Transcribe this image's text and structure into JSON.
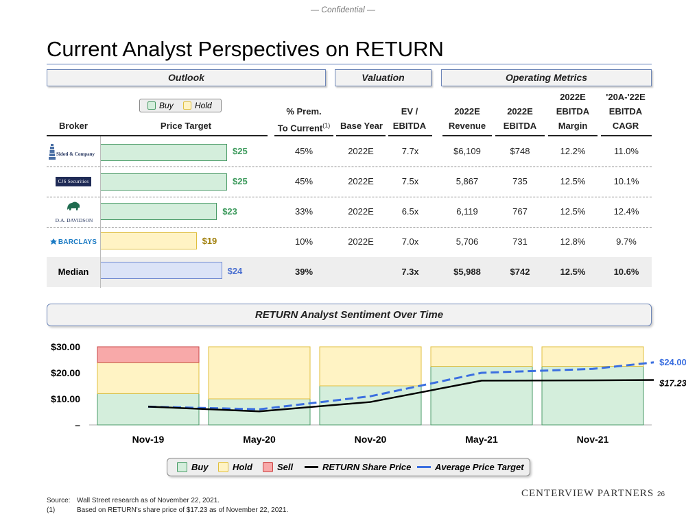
{
  "header": {
    "confidential": "— Confidential —",
    "title": "Current Analyst Perspectives on RETURN"
  },
  "sections": {
    "outlook": "Outlook",
    "valuation": "Valuation",
    "operating": "Operating Metrics"
  },
  "legend_top": {
    "buy": "Buy",
    "hold": "Hold"
  },
  "columns": {
    "broker": "Broker",
    "price_target": "Price Target",
    "prem_line1": "% Prem.",
    "prem_line2": "To Current",
    "prem_note": "(1)",
    "base_year": "Base Year",
    "ev_line1": "EV /",
    "ev_line2": "EBITDA",
    "rev_line1": "2022E",
    "rev_line2": "Revenue",
    "ebitda_line1": "2022E",
    "ebitda_line2": "EBITDA",
    "margin_line1": "2022E",
    "margin_line2": "EBITDA",
    "margin_line3": "Margin",
    "cagr_line1": "'20A-'22E",
    "cagr_line2": "EBITDA",
    "cagr_line3": "CAGR"
  },
  "brokers": [
    {
      "logo_text": "Sidoti & Company",
      "logo_icon": "lighthouse-icon",
      "rating": "Buy",
      "price_target": 25,
      "price_label": "$25",
      "prem": "45%",
      "base_year": "2022E",
      "ev_ebitda": "7.7x",
      "revenue": "$6,109",
      "ebitda": "$748",
      "margin": "12.2%",
      "cagr": "11.0%"
    },
    {
      "logo_text": "CJS Securities",
      "logo_icon": "",
      "rating": "Buy",
      "price_target": 25,
      "price_label": "$25",
      "prem": "45%",
      "base_year": "2022E",
      "ev_ebitda": "7.5x",
      "revenue": "5,867",
      "ebitda": "735",
      "margin": "12.5%",
      "cagr": "10.1%"
    },
    {
      "logo_text": "D.A. DAVIDSON",
      "logo_icon": "bison-icon",
      "rating": "Buy",
      "price_target": 23,
      "price_label": "$23",
      "prem": "33%",
      "base_year": "2022E",
      "ev_ebitda": "6.5x",
      "revenue": "6,119",
      "ebitda": "767",
      "margin": "12.5%",
      "cagr": "12.4%"
    },
    {
      "logo_text": "BARCLAYS",
      "logo_icon": "eagle-icon",
      "rating": "Hold",
      "price_target": 19,
      "price_label": "$19",
      "prem": "10%",
      "base_year": "2022E",
      "ev_ebitda": "7.0x",
      "revenue": "5,706",
      "ebitda": "731",
      "margin": "12.8%",
      "cagr": "9.7%"
    }
  ],
  "median": {
    "label": "Median",
    "price_target": 24,
    "price_label": "$24",
    "prem": "39%",
    "base_year": "",
    "ev_ebitda": "7.3x",
    "revenue": "$5,988",
    "ebitda": "$742",
    "margin": "12.5%",
    "cagr": "10.6%"
  },
  "sentiment_title": "RETURN Analyst Sentiment Over Time",
  "chart_data": {
    "type": "bar",
    "stacked": true,
    "categories": [
      "Nov-19",
      "May-20",
      "Nov-20",
      "May-21",
      "Nov-21"
    ],
    "series": [
      {
        "name": "Buy",
        "values": [
          12,
          10,
          15,
          22.5,
          22.5
        ]
      },
      {
        "name": "Hold",
        "values": [
          12,
          20,
          15,
          7.5,
          7.5
        ]
      },
      {
        "name": "Sell",
        "values": [
          6,
          0,
          0,
          0,
          0
        ]
      }
    ],
    "lines": [
      {
        "name": "RETURN Share Price",
        "x": [
          0,
          1,
          2,
          3,
          4,
          4.55
        ],
        "values": [
          7,
          5.2,
          8.8,
          17,
          17.1,
          17.23
        ]
      },
      {
        "name": "Average Price Target",
        "x": [
          0,
          1,
          2,
          3,
          4,
          4.55
        ],
        "values": [
          7,
          6,
          11,
          20,
          21.5,
          24
        ]
      }
    ],
    "yticks": [
      "$30.00",
      "$20.00",
      "$10.00",
      "–"
    ],
    "ytick_values": [
      30,
      20,
      10,
      0
    ],
    "ylim": [
      0,
      30
    ],
    "end_labels": {
      "price_target": "$24.00",
      "share_price": "$17.23"
    },
    "colors": {
      "buy": "#d4eedc",
      "hold": "#fff3c4",
      "sell": "#f8a9a9",
      "price": "#000000",
      "target": "#3b6fe0"
    },
    "legend_placement": "bottom"
  },
  "chart_legend": {
    "buy": "Buy",
    "hold": "Hold",
    "sell": "Sell",
    "price": "RETURN Share Price",
    "target": "Average Price Target"
  },
  "footnotes": [
    {
      "key": "Source:",
      "text": "Wall Street research as of November 22, 2021."
    },
    {
      "key": "(1)",
      "text": "Based on RETURN's share price of $17.23 as of November 22, 2021."
    }
  ],
  "footer": {
    "logo": "CENTERVIEW PARTNERS",
    "page": "26"
  }
}
